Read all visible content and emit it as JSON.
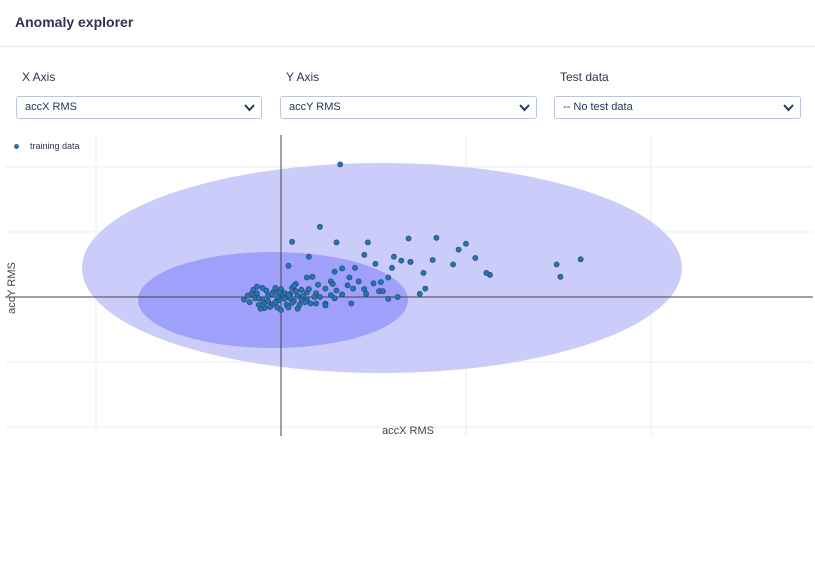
{
  "page": {
    "title": "Anomaly explorer"
  },
  "controls": {
    "x_axis": {
      "label": "X Axis",
      "value": "accX RMS"
    },
    "y_axis": {
      "label": "Y Axis",
      "value": "accY RMS"
    },
    "test_data": {
      "label": "Test data",
      "value": "-- No test data"
    }
  },
  "chart_data": {
    "type": "scatter",
    "xlabel": "accX RMS",
    "ylabel": "accY RMS",
    "grid": true,
    "legend_placement": "top-left",
    "xlim": [
      -1,
      3
    ],
    "ylim": [
      -2,
      2.5
    ],
    "series": [
      {
        "name": "training data",
        "color": "#1f77b4",
        "points": [
          [
            0.32,
            2.04
          ],
          [
            0.21,
            1.08
          ],
          [
            0.06,
            0.85
          ],
          [
            0.3,
            0.84
          ],
          [
            0.47,
            0.84
          ],
          [
            0.69,
            0.9
          ],
          [
            0.84,
            0.91
          ],
          [
            0.96,
            0.73
          ],
          [
            1.0,
            0.82
          ],
          [
            0.7,
            0.54
          ],
          [
            0.15,
            0.62
          ],
          [
            0.45,
            0.65
          ],
          [
            0.61,
            0.62
          ],
          [
            0.82,
            0.57
          ],
          [
            1.05,
            0.6
          ],
          [
            0.93,
            0.5
          ],
          [
            0.51,
            0.51
          ],
          [
            0.6,
            0.45
          ],
          [
            0.77,
            0.37
          ],
          [
            0.4,
            0.45
          ],
          [
            0.29,
            0.39
          ],
          [
            0.14,
            0.3
          ],
          [
            0.37,
            0.3
          ],
          [
            0.42,
            0.24
          ],
          [
            0.5,
            0.21
          ],
          [
            0.54,
            0.23
          ],
          [
            0.58,
            0.3
          ],
          [
            0.45,
            0.12
          ],
          [
            0.3,
            0.1
          ],
          [
            0.33,
            0.04
          ],
          [
            0.46,
            0.05
          ],
          [
            0.27,
            0.24
          ],
          [
            0.53,
            0.09
          ],
          [
            0.36,
            0.18
          ],
          [
            0.04,
            0.48
          ],
          [
            0.08,
            0.2
          ],
          [
            0.24,
            0.13
          ],
          [
            0.19,
            0.06
          ],
          [
            0.11,
            0.11
          ],
          [
            0.17,
            0.31
          ],
          [
            0.7,
            0.54
          ],
          [
            0.38,
            -0.1
          ],
          [
            0.29,
            -0.02
          ],
          [
            0.14,
            -0.04
          ],
          [
            0.21,
            0.0
          ],
          [
            0.05,
            0.05
          ],
          [
            0.24,
            -0.1
          ],
          [
            1.49,
            0.5
          ],
          [
            1.62,
            0.58
          ],
          [
            1.13,
            0.34
          ],
          [
            0.65,
            0.56
          ],
          [
            0.28,
            0.2
          ],
          [
            0.2,
            0.19
          ],
          [
            1.11,
            0.37
          ],
          [
            0.33,
            0.44
          ],
          [
            -0.01,
            -0.05
          ],
          [
            -0.03,
            -0.08
          ],
          [
            -0.05,
            -0.12
          ],
          [
            0.03,
            -0.12
          ],
          [
            -0.09,
            -0.1
          ],
          [
            0.07,
            -0.06
          ],
          [
            0.01,
            0.02
          ],
          [
            -0.07,
            0.02
          ],
          [
            -0.1,
            -0.04
          ],
          [
            -0.12,
            -0.12
          ],
          [
            0.02,
            0.06
          ],
          [
            0.05,
            -0.02
          ],
          [
            0.09,
            0.02
          ],
          [
            -0.04,
            0.08
          ],
          [
            -0.13,
            0.06
          ],
          [
            -0.14,
            -0.02
          ],
          [
            -0.06,
            -0.15
          ],
          [
            -0.09,
            -0.17
          ],
          [
            -0.02,
            -0.16
          ],
          [
            0.04,
            -0.16
          ],
          [
            0.1,
            -0.12
          ],
          [
            0.13,
            -0.08
          ],
          [
            0.12,
            0.02
          ],
          [
            0.08,
            0.09
          ],
          [
            0.0,
            0.12
          ],
          [
            -0.08,
            0.1
          ],
          [
            -0.16,
            0.05
          ],
          [
            -0.17,
            -0.08
          ],
          [
            -0.11,
            -0.18
          ],
          [
            0.06,
            0.14
          ],
          [
            0.16,
            -0.1
          ],
          [
            -0.02,
            0.0
          ],
          [
            0.06,
            -0.09
          ],
          [
            -0.01,
            0.07
          ],
          [
            0.04,
            0.03
          ],
          [
            -0.05,
            0.05
          ],
          [
            -0.15,
            0.11
          ],
          [
            -0.2,
            -0.04
          ],
          [
            -0.18,
            0.02
          ],
          [
            0.11,
            -0.04
          ],
          [
            0.14,
            0.07
          ],
          [
            0.18,
            0.0
          ],
          [
            0.19,
            -0.1
          ],
          [
            -0.03,
            0.14
          ],
          [
            0.09,
            -0.18
          ],
          [
            0.0,
            -0.2
          ],
          [
            -0.12,
            -0.02
          ],
          [
            -0.07,
            -0.06
          ],
          [
            0.02,
            -0.03
          ],
          [
            0.15,
            0.12
          ],
          [
            -0.1,
            0.14
          ],
          [
            0.07,
            0.17
          ],
          [
            -0.13,
            0.16
          ],
          [
            1.51,
            0.31
          ],
          [
            0.39,
            0.13
          ],
          [
            0.78,
            0.13
          ],
          [
            0.58,
            -0.03
          ],
          [
            0.75,
            0.05
          ],
          [
            0.55,
            0.09
          ],
          [
            0.24,
            -0.13
          ],
          [
            0.27,
            0.03
          ],
          [
            0.63,
            0.0
          ]
        ]
      }
    ]
  }
}
